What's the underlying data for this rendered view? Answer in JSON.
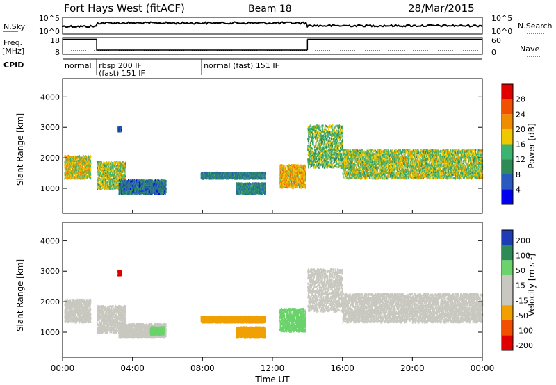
{
  "header": {
    "station": "Fort Hays West (fitACF)",
    "beam": "Beam 18",
    "date": "28/Mar/2015"
  },
  "top_panels": {
    "nsky_label": "N.Sky",
    "nsky_ticks": [
      "10^5",
      "10^0"
    ],
    "nsearch_label": "N.Search",
    "nsearch_ticks": [
      "10^5",
      "10^0"
    ],
    "freq_label": [
      "Freq.",
      "[MHz]"
    ],
    "freq_ticks": [
      "18",
      "8"
    ],
    "nave_label": "Nave",
    "nave_ticks": [
      "60",
      "0"
    ],
    "cpid_label": "CPID",
    "cpid_segments": [
      {
        "start_hour": 0.0,
        "end_hour": 1.95,
        "lines": [
          "normal"
        ]
      },
      {
        "start_hour": 1.95,
        "end_hour": 7.95,
        "lines": [
          "rbsp 200 IF",
          "(fast) 151 IF"
        ]
      },
      {
        "start_hour": 7.95,
        "end_hour": 24.0,
        "lines": [
          "normal (fast) 151 IF"
        ]
      }
    ],
    "frequency_steps": [
      {
        "start_hour": 0.0,
        "end_hour": 1.95,
        "freq_mhz": 17.0
      },
      {
        "start_hour": 1.95,
        "end_hour": 14.0,
        "freq_mhz": 10.5
      },
      {
        "start_hour": 14.0,
        "end_hour": 24.0,
        "freq_mhz": 17.0
      }
    ]
  },
  "x_axis": {
    "label": "Time UT",
    "ticks": [
      "00:00",
      "04:00",
      "08:00",
      "12:00",
      "16:00",
      "20:00",
      "00:00"
    ]
  },
  "colors": {
    "power": [
      "#0000f0",
      "#2a5abe",
      "#2e8b57",
      "#3cb371",
      "#f0c800",
      "#f08c00",
      "#f05000",
      "#e00000"
    ],
    "velocity": [
      "#e00000",
      "#f05000",
      "#f0a000",
      "#c8c8c0",
      "#c8c8c0",
      "#6cd26c",
      "#2e8b57",
      "#1e3cb4"
    ]
  },
  "chart_data": [
    {
      "type": "heatmap",
      "title": "Power",
      "ylabel": "Slant Range [km]",
      "xlabel": "Time UT",
      "x_unit": "hour UT",
      "xlim": [
        0,
        24
      ],
      "ylim": [
        180,
        4600
      ],
      "yticks": [
        "1000",
        "2000",
        "3000",
        "4000"
      ],
      "colorbar": {
        "label": "Power [dB]",
        "ticks": [
          "4",
          "8",
          "12",
          "16",
          "20",
          "24",
          "28"
        ],
        "range": [
          0,
          30
        ]
      },
      "regions": [
        {
          "t0": 0.1,
          "t1": 1.6,
          "r_lo": 1350,
          "r_hi": 2100,
          "value": 18
        },
        {
          "t0": 1.95,
          "t1": 3.6,
          "r_lo": 1000,
          "r_hi": 1900,
          "value": 16
        },
        {
          "t0": 3.2,
          "t1": 5.9,
          "r_lo": 850,
          "r_hi": 1300,
          "value": 8
        },
        {
          "t0": 3.15,
          "t1": 3.35,
          "r_lo": 2900,
          "r_hi": 3050,
          "value": 6
        },
        {
          "t0": 7.9,
          "t1": 11.6,
          "r_lo": 1350,
          "r_hi": 1550,
          "value": 9
        },
        {
          "t0": 9.9,
          "t1": 11.6,
          "r_lo": 850,
          "r_hi": 1200,
          "value": 9
        },
        {
          "t0": 12.4,
          "t1": 13.9,
          "r_lo": 1050,
          "r_hi": 1800,
          "value": 20
        },
        {
          "t0": 14.0,
          "t1": 16.0,
          "r_lo": 1700,
          "r_hi": 3100,
          "value": 14
        },
        {
          "t0": 16.0,
          "t1": 24.0,
          "r_lo": 1350,
          "r_hi": 2300,
          "value": 16
        }
      ]
    },
    {
      "type": "heatmap",
      "title": "Velocity",
      "ylabel": "Slant Range [km]",
      "xlabel": "Time UT",
      "x_unit": "hour UT",
      "xlim": [
        0,
        24
      ],
      "ylim": [
        180,
        4600
      ],
      "yticks": [
        "1000",
        "2000",
        "3000",
        "4000"
      ],
      "colorbar": {
        "label": "Velocity [m s^-1]",
        "ticks": [
          "200",
          "100",
          "50",
          "15",
          "-15",
          "-50",
          "-100",
          "-200"
        ],
        "range": [
          -250,
          250
        ]
      },
      "regions": [
        {
          "t0": 0.1,
          "t1": 1.6,
          "r_lo": 1350,
          "r_hi": 2100,
          "value": 0
        },
        {
          "t0": 1.95,
          "t1": 3.6,
          "r_lo": 1000,
          "r_hi": 1900,
          "value": -5
        },
        {
          "t0": 3.2,
          "t1": 5.9,
          "r_lo": 850,
          "r_hi": 1300,
          "value": -40
        },
        {
          "t0": 5.0,
          "t1": 5.8,
          "r_lo": 950,
          "r_hi": 1200,
          "value": 30
        },
        {
          "t0": 3.15,
          "t1": 3.35,
          "r_lo": 2900,
          "r_hi": 3050,
          "value": -220
        },
        {
          "t0": 7.9,
          "t1": 11.6,
          "r_lo": 1350,
          "r_hi": 1550,
          "value": -60
        },
        {
          "t0": 9.9,
          "t1": 11.6,
          "r_lo": 850,
          "r_hi": 1200,
          "value": -60
        },
        {
          "t0": 12.4,
          "t1": 13.9,
          "r_lo": 1050,
          "r_hi": 1800,
          "value": 30
        },
        {
          "t0": 14.0,
          "t1": 16.0,
          "r_lo": 1700,
          "r_hi": 3100,
          "value": 0
        },
        {
          "t0": 16.0,
          "t1": 24.0,
          "r_lo": 1350,
          "r_hi": 2300,
          "value": 0
        }
      ]
    }
  ]
}
